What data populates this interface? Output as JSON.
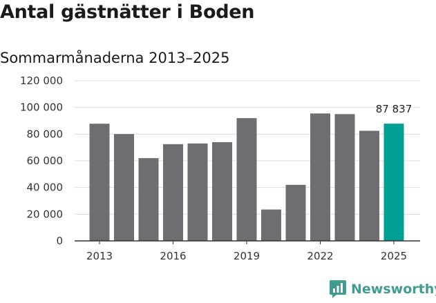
{
  "title": "Antal gästnätter i Boden",
  "subtitle": "Sommarmånaderna 2013–2025",
  "brand": {
    "name": "Newsworthy",
    "color": "#3f9c8e",
    "icon": "newsworthy-logo-icon"
  },
  "colors": {
    "bar": "#6e6d72",
    "highlight": "#00a095",
    "grid": "#dcdcdc",
    "axis": "#333333"
  },
  "chart_data": {
    "type": "bar",
    "title": "Antal gästnätter i Boden",
    "subtitle": "Sommarmånaderna 2013–2025",
    "xlabel": "",
    "ylabel": "",
    "categories": [
      "2013",
      "2014",
      "2015",
      "2016",
      "2017",
      "2018",
      "2019",
      "2020",
      "2021",
      "2022",
      "2023",
      "2024",
      "2025"
    ],
    "values": [
      87800,
      80100,
      62000,
      72500,
      73000,
      74000,
      92000,
      23500,
      42000,
      95500,
      95000,
      82500,
      87837
    ],
    "highlight_index": 12,
    "data_labels": [
      {
        "index": 12,
        "text": "87 837"
      }
    ],
    "ylim": [
      0,
      120000
    ],
    "y_ticks": [
      {
        "value": 0,
        "label": "0"
      },
      {
        "value": 20000,
        "label": "20 000"
      },
      {
        "value": 40000,
        "label": "40 000"
      },
      {
        "value": 60000,
        "label": "60 000"
      },
      {
        "value": 80000,
        "label": "80 000"
      },
      {
        "value": 100000,
        "label": "100 000"
      },
      {
        "value": 120000,
        "label": "120 000"
      }
    ],
    "x_ticks": [
      {
        "index": 0,
        "label": "2013"
      },
      {
        "index": 3,
        "label": "2016"
      },
      {
        "index": 6,
        "label": "2019"
      },
      {
        "index": 9,
        "label": "2022"
      },
      {
        "index": 12,
        "label": "2025"
      }
    ],
    "grid": true,
    "legend": "none"
  }
}
